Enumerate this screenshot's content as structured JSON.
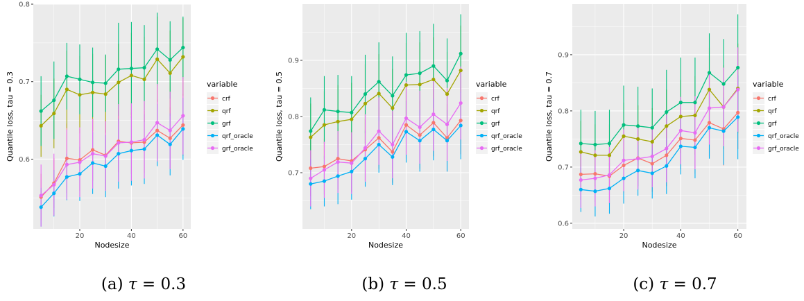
{
  "colors": {
    "crf": "#F8766D",
    "qrf": "#A3A500",
    "grf": "#00BF7D",
    "qrf_oracle": "#00B0F6",
    "grf_oracle": "#E76BF3",
    "panel_background": "#EBEBEB",
    "grid": "#FFFFFF"
  },
  "chart_data": [
    {
      "type": "line",
      "caption_prefix": "(a) ",
      "caption_symbol": "τ",
      "caption_suffix": " = 0.3",
      "xlabel": "Nodesize",
      "ylabel": "Quantile loss, tau = 0.3",
      "xlim": [
        2,
        63
      ],
      "ylim": [
        0.51,
        0.8
      ],
      "xticks": [
        20,
        40,
        60
      ],
      "yticks": [
        0.6,
        0.7,
        0.8
      ],
      "grid": true,
      "legend_title": "variable",
      "legend_position": "right",
      "error_bars": true,
      "x": [
        5,
        10,
        15,
        20,
        25,
        30,
        35,
        40,
        45,
        50,
        55,
        60
      ],
      "series": [
        {
          "name": "crf",
          "values": [
            0.551,
            0.569,
            0.601,
            0.599,
            0.612,
            0.605,
            0.623,
            0.621,
            0.622,
            0.637,
            0.627,
            0.644
          ],
          "err": [
            0.03,
            0.032,
            0.045,
            0.04,
            0.04,
            0.045,
            0.04,
            0.04,
            0.04,
            0.04,
            0.04,
            0.04
          ]
        },
        {
          "name": "qrf",
          "values": [
            0.643,
            0.659,
            0.69,
            0.683,
            0.686,
            0.684,
            0.699,
            0.708,
            0.703,
            0.729,
            0.711,
            0.732
          ],
          "err": [
            0.04,
            0.045,
            0.05,
            0.05,
            0.05,
            0.05,
            0.05,
            0.055,
            0.055,
            0.055,
            0.055,
            0.05
          ]
        },
        {
          "name": "grf",
          "values": [
            0.662,
            0.676,
            0.707,
            0.703,
            0.699,
            0.698,
            0.716,
            0.717,
            0.718,
            0.742,
            0.728,
            0.744
          ],
          "err": [
            0.045,
            0.05,
            0.043,
            0.045,
            0.045,
            0.037,
            0.06,
            0.06,
            0.055,
            0.047,
            0.05,
            0.04
          ]
        },
        {
          "name": "qrf_oracle",
          "values": [
            0.538,
            0.556,
            0.577,
            0.581,
            0.595,
            0.591,
            0.607,
            0.611,
            0.613,
            0.631,
            0.619,
            0.639
          ],
          "err": [
            0.025,
            0.03,
            0.03,
            0.035,
            0.04,
            0.04,
            0.045,
            0.045,
            0.045,
            0.04,
            0.04,
            0.04
          ]
        },
        {
          "name": "grf_oracle",
          "values": [
            0.553,
            0.567,
            0.593,
            0.596,
            0.607,
            0.604,
            0.621,
            0.622,
            0.625,
            0.647,
            0.637,
            0.656
          ],
          "err": [
            0.04,
            0.04,
            0.045,
            0.045,
            0.045,
            0.045,
            0.05,
            0.05,
            0.05,
            0.05,
            0.05,
            0.05
          ]
        }
      ]
    },
    {
      "type": "line",
      "caption_prefix": "(b) ",
      "caption_symbol": "τ",
      "caption_suffix": " = 0.5",
      "xlabel": "Nodesize",
      "ylabel": "Quantile loss, tau = 0.5",
      "xlim": [
        2,
        63
      ],
      "ylim": [
        0.6,
        1.0
      ],
      "xticks": [
        20,
        40,
        60
      ],
      "yticks": [
        0.7,
        0.8,
        0.9
      ],
      "grid": true,
      "legend_title": "variable",
      "legend_position": "right",
      "error_bars": true,
      "x": [
        5,
        10,
        15,
        20,
        25,
        30,
        35,
        40,
        45,
        50,
        55,
        60
      ],
      "series": [
        {
          "name": "crf",
          "values": [
            0.708,
            0.711,
            0.725,
            0.721,
            0.741,
            0.762,
            0.737,
            0.785,
            0.767,
            0.789,
            0.762,
            0.793
          ],
          "err": [
            0.05,
            0.05,
            0.055,
            0.055,
            0.055,
            0.055,
            0.055,
            0.06,
            0.06,
            0.06,
            0.06,
            0.06
          ]
        },
        {
          "name": "qrf",
          "values": [
            0.763,
            0.785,
            0.791,
            0.795,
            0.823,
            0.841,
            0.815,
            0.856,
            0.857,
            0.866,
            0.84,
            0.882
          ],
          "err": [
            0.06,
            0.06,
            0.065,
            0.065,
            0.07,
            0.07,
            0.07,
            0.075,
            0.075,
            0.075,
            0.075,
            0.08
          ]
        },
        {
          "name": "grf",
          "values": [
            0.774,
            0.812,
            0.809,
            0.807,
            0.84,
            0.862,
            0.837,
            0.874,
            0.877,
            0.89,
            0.864,
            0.912
          ],
          "err": [
            0.06,
            0.06,
            0.065,
            0.065,
            0.07,
            0.07,
            0.07,
            0.075,
            0.075,
            0.075,
            0.075,
            0.07
          ]
        },
        {
          "name": "qrf_oracle",
          "values": [
            0.68,
            0.685,
            0.694,
            0.702,
            0.725,
            0.75,
            0.728,
            0.773,
            0.757,
            0.777,
            0.757,
            0.784
          ],
          "err": [
            0.045,
            0.045,
            0.05,
            0.05,
            0.05,
            0.05,
            0.05,
            0.055,
            0.055,
            0.055,
            0.055,
            0.06
          ]
        },
        {
          "name": "grf_oracle",
          "values": [
            0.69,
            0.705,
            0.719,
            0.717,
            0.744,
            0.774,
            0.75,
            0.797,
            0.781,
            0.804,
            0.786,
            0.824
          ],
          "err": [
            0.05,
            0.05,
            0.055,
            0.055,
            0.06,
            0.06,
            0.06,
            0.065,
            0.065,
            0.065,
            0.065,
            0.065
          ]
        }
      ]
    },
    {
      "type": "line",
      "caption_prefix": "(c) ",
      "caption_symbol": "τ",
      "caption_suffix": " = 0.7",
      "xlabel": "Nodesize",
      "ylabel": "Quantile loss, tau = 0.7",
      "xlim": [
        2,
        63
      ],
      "ylim": [
        0.59,
        0.99
      ],
      "xticks": [
        20,
        40,
        60
      ],
      "yticks": [
        0.6,
        0.7,
        0.8,
        0.9
      ],
      "grid": true,
      "legend_title": "variable",
      "legend_position": "right",
      "error_bars": true,
      "x": [
        5,
        10,
        15,
        20,
        25,
        30,
        35,
        40,
        45,
        50,
        55,
        60
      ],
      "series": [
        {
          "name": "crf",
          "values": [
            0.687,
            0.688,
            0.684,
            0.703,
            0.716,
            0.706,
            0.721,
            0.751,
            0.748,
            0.779,
            0.768,
            0.797
          ],
          "err": [
            0.045,
            0.05,
            0.05,
            0.05,
            0.05,
            0.05,
            0.055,
            0.055,
            0.06,
            0.06,
            0.065,
            0.065
          ]
        },
        {
          "name": "qrf",
          "values": [
            0.727,
            0.721,
            0.721,
            0.755,
            0.75,
            0.745,
            0.773,
            0.79,
            0.792,
            0.838,
            0.807,
            0.84
          ],
          "err": [
            0.055,
            0.055,
            0.055,
            0.06,
            0.06,
            0.06,
            0.065,
            0.065,
            0.07,
            0.075,
            0.075,
            0.08
          ]
        },
        {
          "name": "grf",
          "values": [
            0.742,
            0.74,
            0.742,
            0.775,
            0.773,
            0.77,
            0.798,
            0.815,
            0.815,
            0.868,
            0.848,
            0.877
          ],
          "err": [
            0.06,
            0.06,
            0.06,
            0.07,
            0.07,
            0.07,
            0.075,
            0.08,
            0.08,
            0.07,
            0.08,
            0.095
          ]
        },
        {
          "name": "qrf_oracle",
          "values": [
            0.66,
            0.657,
            0.662,
            0.68,
            0.694,
            0.689,
            0.702,
            0.737,
            0.735,
            0.77,
            0.764,
            0.789
          ],
          "err": [
            0.04,
            0.045,
            0.045,
            0.045,
            0.045,
            0.045,
            0.05,
            0.05,
            0.055,
            0.055,
            0.06,
            0.075
          ]
        },
        {
          "name": "grf_oracle",
          "values": [
            0.677,
            0.68,
            0.686,
            0.712,
            0.715,
            0.719,
            0.733,
            0.765,
            0.761,
            0.805,
            0.807,
            0.838
          ],
          "err": [
            0.05,
            0.05,
            0.05,
            0.055,
            0.055,
            0.055,
            0.06,
            0.06,
            0.065,
            0.065,
            0.07,
            0.075
          ]
        }
      ]
    }
  ]
}
